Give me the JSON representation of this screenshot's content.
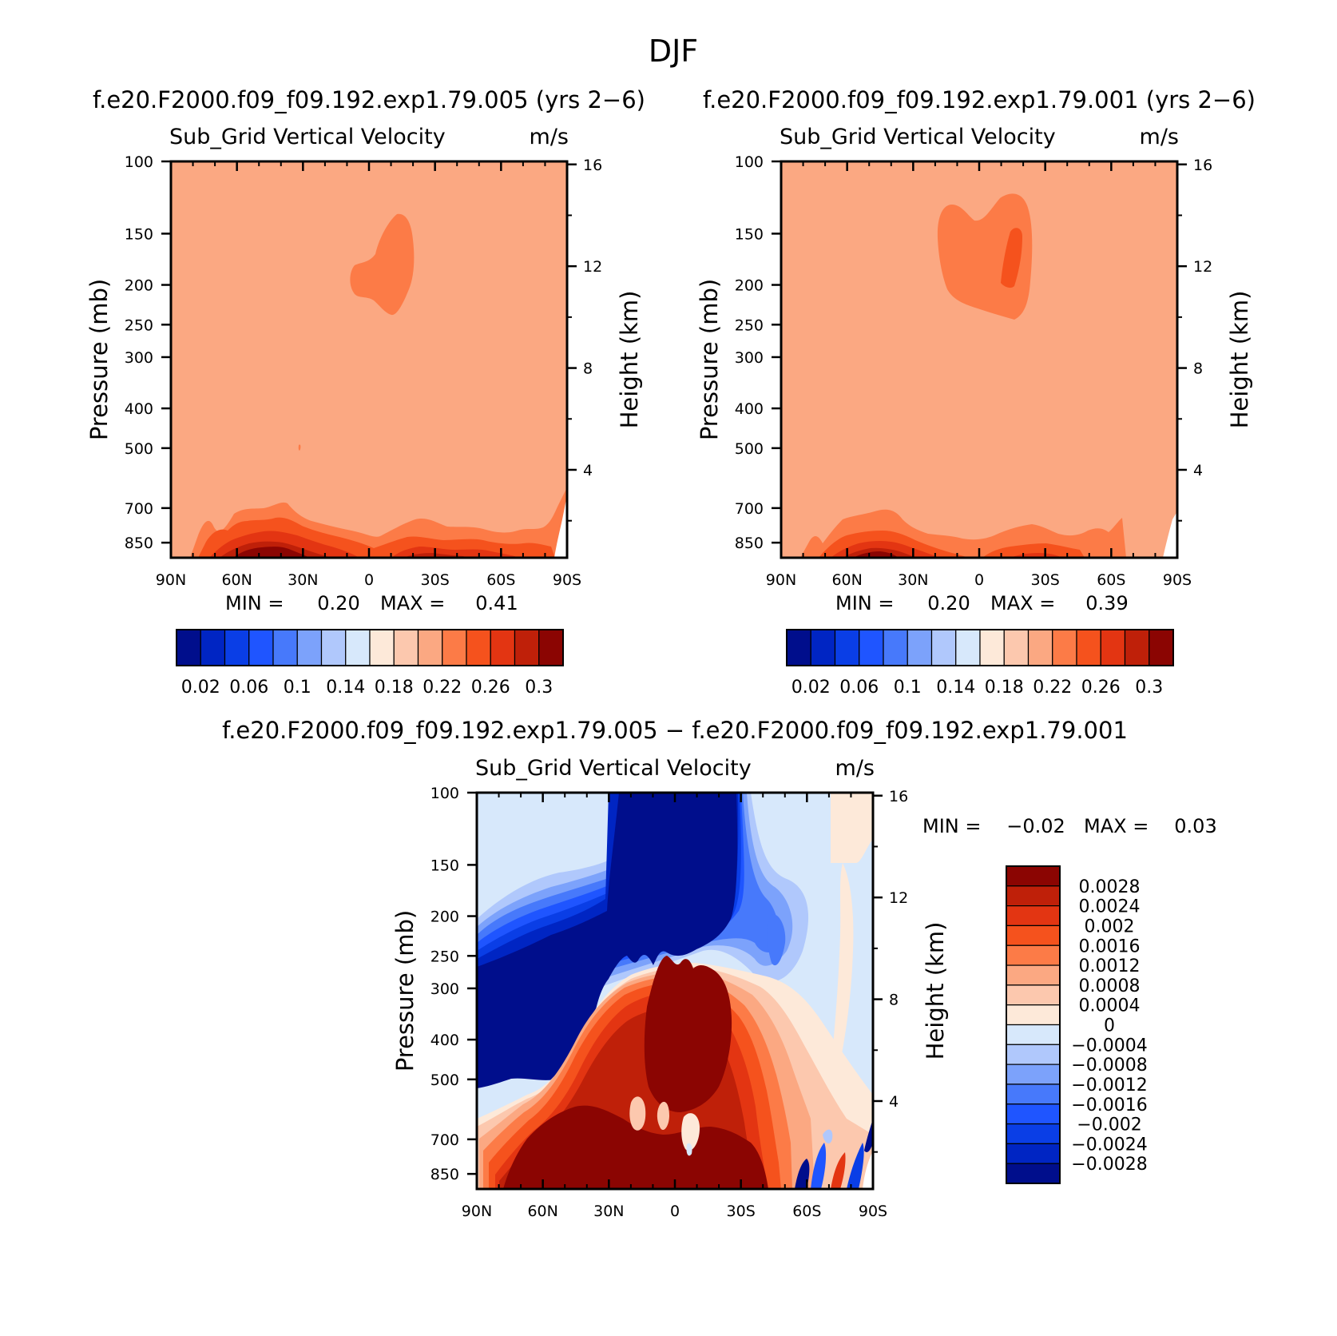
{
  "figure": {
    "title": "DJF"
  },
  "chart_data": [
    {
      "type": "heatmap",
      "title": "f.e20.F2000.f09_f09.192.exp1.79.005 (yrs 2−6)",
      "subtitle_left": "Sub_Grid Vertical Velocity",
      "subtitle_right": "m/s",
      "xlabel": "",
      "ylabel": "Pressure (mb)",
      "ylabel_right": "Height (km)",
      "x_ticks": [
        "90N",
        "60N",
        "30N",
        "0",
        "30S",
        "60S",
        "90S"
      ],
      "y_ticks": [
        "100",
        "150",
        "200",
        "250",
        "300",
        "400",
        "500",
        "700",
        "850"
      ],
      "y_ticks_right": [
        "16",
        "12",
        "8",
        "4"
      ],
      "ylim": [
        100,
        925
      ],
      "log_y": true,
      "min_label": "MIN  =",
      "min_value": "0.20",
      "max_label": "MAX  =",
      "max_value": "0.41",
      "colorbar_labels": [
        "0.02",
        "0.06",
        "0.1",
        "0.14",
        "0.18",
        "0.22",
        "0.26",
        "0.3"
      ],
      "background_color": "#fba882",
      "features": [
        {
          "kind": "maximum",
          "approx_value": 0.23,
          "lat_range": [
            "10N",
            "20S"
          ],
          "pressure_range": [
            140,
            240
          ]
        },
        {
          "kind": "boundary-layer maximum",
          "approx_value": 0.41,
          "lat_range": [
            "70N",
            "10N"
          ],
          "pressure_range": [
            750,
            925
          ]
        }
      ]
    },
    {
      "type": "heatmap",
      "title": "f.e20.F2000.f09_f09.192.exp1.79.001 (yrs 2−6)",
      "subtitle_left": "Sub_Grid Vertical Velocity",
      "subtitle_right": "m/s",
      "xlabel": "",
      "ylabel": "Pressure (mb)",
      "ylabel_right": "Height (km)",
      "x_ticks": [
        "90N",
        "60N",
        "30N",
        "0",
        "30S",
        "60S",
        "90S"
      ],
      "y_ticks": [
        "100",
        "150",
        "200",
        "250",
        "300",
        "400",
        "500",
        "700",
        "850"
      ],
      "y_ticks_right": [
        "16",
        "12",
        "8",
        "4"
      ],
      "ylim": [
        100,
        925
      ],
      "log_y": true,
      "min_label": "MIN  =",
      "min_value": "0.20",
      "max_label": "MAX  =",
      "max_value": "0.39",
      "colorbar_labels": [
        "0.02",
        "0.06",
        "0.1",
        "0.14",
        "0.18",
        "0.22",
        "0.26",
        "0.3"
      ],
      "background_color": "#fba882",
      "features": [
        {
          "kind": "maximum",
          "approx_value": 0.24,
          "lat_range": [
            "20N",
            "25S"
          ],
          "pressure_range": [
            120,
            240
          ]
        },
        {
          "kind": "boundary-layer maximum",
          "approx_value": 0.39,
          "lat_range": [
            "70N",
            "10N"
          ],
          "pressure_range": [
            750,
            925
          ]
        }
      ]
    },
    {
      "type": "heatmap",
      "title": "f.e20.F2000.f09_f09.192.exp1.79.005 − f.e20.F2000.f09_f09.192.exp1.79.001",
      "subtitle_left": "Sub_Grid Vertical Velocity",
      "subtitle_right": "m/s",
      "xlabel": "",
      "ylabel": "Pressure (mb)",
      "ylabel_right": "Height (km)",
      "x_ticks": [
        "90N",
        "60N",
        "30N",
        "0",
        "30S",
        "60S",
        "90S"
      ],
      "y_ticks": [
        "100",
        "150",
        "200",
        "250",
        "300",
        "400",
        "500",
        "700",
        "850"
      ],
      "y_ticks_right": [
        "16",
        "12",
        "8",
        "4"
      ],
      "ylim": [
        100,
        925
      ],
      "log_y": true,
      "min_label": "MIN  =",
      "min_value": "−0.02",
      "max_label": "MAX  =",
      "max_value": "0.03",
      "colorbar_labels": [
        "0.0028",
        "0.0024",
        "0.002",
        "0.0016",
        "0.0012",
        "0.0008",
        "0.0004",
        "0",
        "−0.0004",
        "−0.0008",
        "−0.0012",
        "−0.0016",
        "−0.002",
        "−0.0024",
        "−0.0028"
      ],
      "background_color": "#d7e8fb"
    }
  ],
  "colors": {
    "seq": [
      "#000e8c",
      "#0025c3",
      "#0a3ee6",
      "#1f55ff",
      "#4779fb",
      "#7ca2fb",
      "#b0c8fc",
      "#d7e8fb",
      "#fde9d9",
      "#fcc8ae",
      "#fba882",
      "#fc7b47",
      "#f5521d",
      "#e33512",
      "#bf2009",
      "#8b0502"
    ],
    "diff": [
      "#8b0502",
      "#bf2009",
      "#e33512",
      "#f5521d",
      "#fc7b47",
      "#fba882",
      "#fcc8ae",
      "#fde9d9",
      "#d7e8fb",
      "#b0c8fc",
      "#7ca2fb",
      "#4779fb",
      "#1f55ff",
      "#0a3ee6",
      "#0025c3",
      "#000e8c"
    ]
  }
}
